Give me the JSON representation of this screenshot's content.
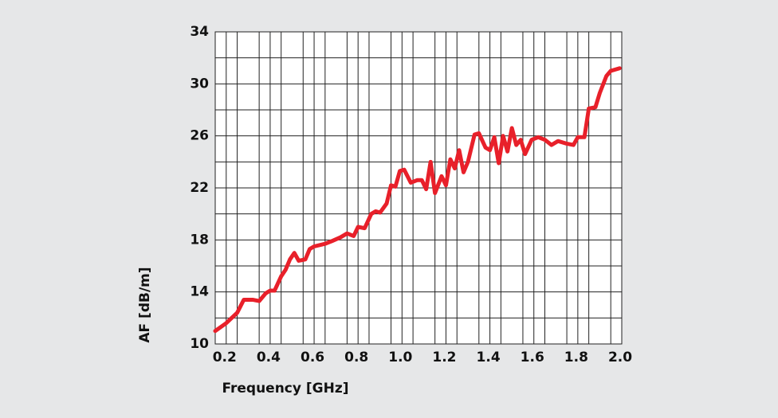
{
  "chart_data": {
    "type": "line",
    "xlabel": "Frequency [GHz]",
    "ylabel": "AF [dB/m]",
    "x": [
      0.15,
      0.2,
      0.25,
      0.28,
      0.32,
      0.35,
      0.38,
      0.4,
      0.42,
      0.45,
      0.47,
      0.49,
      0.51,
      0.53,
      0.56,
      0.58,
      0.6,
      0.65,
      0.68,
      0.72,
      0.75,
      0.78,
      0.8,
      0.83,
      0.86,
      0.88,
      0.9,
      0.93,
      0.95,
      0.97,
      0.99,
      1.01,
      1.04,
      1.07,
      1.09,
      1.11,
      1.13,
      1.15,
      1.18,
      1.2,
      1.22,
      1.24,
      1.26,
      1.28,
      1.3,
      1.33,
      1.35,
      1.38,
      1.4,
      1.42,
      1.44,
      1.46,
      1.48,
      1.5,
      1.52,
      1.54,
      1.56,
      1.59,
      1.62,
      1.65,
      1.68,
      1.71,
      1.75,
      1.78,
      1.8,
      1.83,
      1.85,
      1.88,
      1.9,
      1.93,
      1.95,
      1.99
    ],
    "series": [
      {
        "color": "#e8202a",
        "values": [
          11.0,
          11.6,
          12.4,
          13.4,
          13.4,
          13.3,
          13.9,
          14.1,
          14.1,
          15.2,
          15.7,
          16.5,
          17.0,
          16.4,
          16.5,
          17.3,
          17.5,
          17.7,
          17.9,
          18.2,
          18.5,
          18.3,
          19.0,
          18.9,
          20.0,
          20.2,
          20.1,
          20.8,
          22.2,
          22.1,
          23.3,
          23.4,
          22.4,
          22.6,
          22.6,
          21.9,
          24.0,
          21.6,
          22.9,
          22.2,
          24.2,
          23.5,
          24.9,
          23.2,
          24.0,
          26.1,
          26.2,
          25.1,
          24.9,
          25.9,
          23.9,
          26.0,
          24.8,
          26.6,
          25.3,
          25.7,
          24.6,
          25.7,
          25.9,
          25.7,
          25.3,
          25.6,
          25.4,
          25.3,
          25.9,
          25.9,
          28.1,
          28.2,
          29.3,
          30.6,
          31.0,
          31.2
        ]
      }
    ],
    "xlim": [
      0.15,
      2.0
    ],
    "ylim": [
      10,
      34
    ],
    "xticks": [
      0.2,
      0.4,
      0.6,
      0.8,
      {
        "value": 1,
        "label": "1.0"
      },
      1.2,
      1.4,
      1.6,
      1.8,
      {
        "value": 2,
        "label": "2.0"
      }
    ],
    "yticks": [
      10,
      14,
      18,
      22,
      26,
      30,
      34
    ],
    "xgrid": [
      0.25,
      0.35,
      0.45,
      0.55,
      0.65,
      0.75,
      0.85,
      0.95,
      1.05,
      1.15,
      1.25,
      1.35,
      1.45,
      1.55,
      1.65,
      1.75,
      1.85,
      1.95
    ],
    "ygrid": [
      12,
      16,
      20,
      24,
      28,
      32
    ],
    "grid": true
  }
}
